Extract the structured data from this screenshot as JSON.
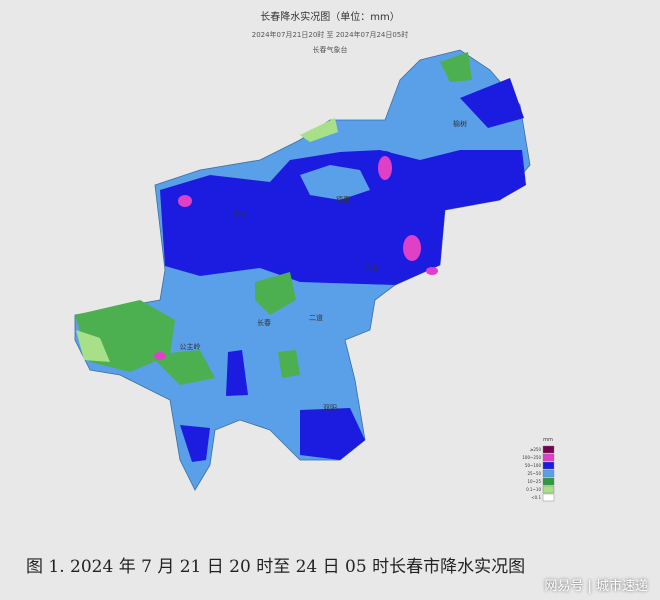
{
  "header": {
    "title": "长春降水实况图（单位：mm）",
    "subtitle": "2024年07月21日20时  至  2024年07月24日05时",
    "source": "长春气象台"
  },
  "map": {
    "labels": [
      "榆树",
      "德惠",
      "农安",
      "九台",
      "公主岭",
      "长春",
      "二道",
      "双阳"
    ]
  },
  "legend": {
    "unit": "mm",
    "items": [
      {
        "label": "≥250",
        "color": "#7a0050"
      },
      {
        "label": "100~250",
        "color": "#e040c8"
      },
      {
        "label": "50~100",
        "color": "#1c1ce0"
      },
      {
        "label": "25~50",
        "color": "#5aa0e8"
      },
      {
        "label": "10~25",
        "color": "#2e9a3e"
      },
      {
        "label": "0.1~10",
        "color": "#a8e08a"
      },
      {
        "label": "<0.1",
        "color": "#ffffff"
      }
    ]
  },
  "caption": "图 1.   2024 年 7 月 21 日 20 时至 24 日 05 时长春市降水实况图",
  "watermark": "网易号 | 城市速递"
}
